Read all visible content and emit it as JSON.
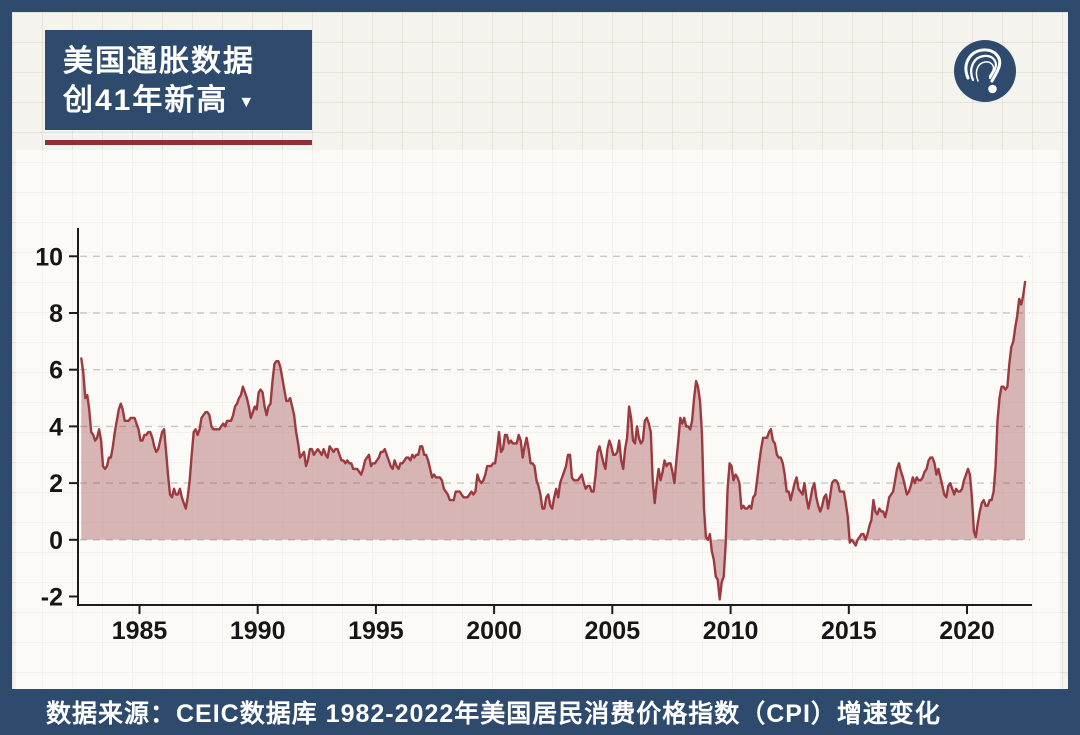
{
  "colors": {
    "navy": "#2e4b6e",
    "accent_red": "#8e2f36",
    "line": "#9c3a40",
    "fill": "#9c3a40",
    "fill_opacity": 0.36,
    "grid": "#c9c7c2",
    "axis": "#1c1c1c",
    "canvas": "#f5f3ed",
    "tick_text": "#161616",
    "white": "#ffffff"
  },
  "header": {
    "title_line1": "美国通胀数据",
    "title_line2": "创41年新高",
    "dropdown_icon": "▼"
  },
  "logo": {
    "description": "question-exclamation-mark-logo"
  },
  "footer": {
    "text": "数据来源：CEIC数据库 1982-2022年美国居民消费价格指数（CPI）增速变化"
  },
  "chart_data": {
    "type": "area",
    "title": "美国通胀数据创41年新高",
    "xlabel": "",
    "ylabel": "",
    "x_unit": "year",
    "y_unit": "%",
    "xticks": [
      1985,
      1990,
      1995,
      2000,
      2005,
      2010,
      2015,
      2020
    ],
    "yticks": [
      -2,
      0,
      2,
      4,
      6,
      8,
      10
    ],
    "xlim": [
      1982.4,
      2022.75
    ],
    "ylim": [
      -2.3,
      11.0
    ],
    "grid": "horizontal-dashed",
    "legend": "none",
    "baseline": 0,
    "series": [
      {
        "name": "美国CPI同比增速(%)",
        "frequency": "monthly",
        "start_year": 1982,
        "start_month": 7,
        "values": [
          6.4,
          5.9,
          5.0,
          5.1,
          4.6,
          3.8,
          3.7,
          3.5,
          3.6,
          3.9,
          3.5,
          2.6,
          2.5,
          2.6,
          2.9,
          2.9,
          3.3,
          3.8,
          4.2,
          4.6,
          4.8,
          4.6,
          4.2,
          4.2,
          4.2,
          4.3,
          4.3,
          4.3,
          4.1,
          3.9,
          3.5,
          3.5,
          3.7,
          3.7,
          3.8,
          3.8,
          3.6,
          3.3,
          3.1,
          3.2,
          3.5,
          3.8,
          3.9,
          3.1,
          2.3,
          1.6,
          1.5,
          1.8,
          1.6,
          1.6,
          1.8,
          1.5,
          1.3,
          1.1,
          1.5,
          2.1,
          3.0,
          3.8,
          3.9,
          3.7,
          3.9,
          4.3,
          4.4,
          4.5,
          4.5,
          4.4,
          4.0,
          3.9,
          3.9,
          3.9,
          3.9,
          4.0,
          4.1,
          4.0,
          4.2,
          4.2,
          4.2,
          4.4,
          4.7,
          4.8,
          5.0,
          5.1,
          5.4,
          5.2,
          5.0,
          4.7,
          4.3,
          4.5,
          4.7,
          4.6,
          5.2,
          5.3,
          5.2,
          4.7,
          4.4,
          4.7,
          4.8,
          5.6,
          6.2,
          6.3,
          6.3,
          6.1,
          5.7,
          5.3,
          4.9,
          4.9,
          5.0,
          4.7,
          4.4,
          3.8,
          3.4,
          2.9,
          3.0,
          3.1,
          2.6,
          2.8,
          3.2,
          3.2,
          3.0,
          3.1,
          3.2,
          3.1,
          3.0,
          3.2,
          3.0,
          2.9,
          3.3,
          3.2,
          3.1,
          3.2,
          3.2,
          3.0,
          2.8,
          2.8,
          2.7,
          2.8,
          2.7,
          2.7,
          2.5,
          2.5,
          2.5,
          2.4,
          2.3,
          2.5,
          2.8,
          2.9,
          3.0,
          2.6,
          2.7,
          2.7,
          2.8,
          2.9,
          3.1,
          3.1,
          3.2,
          3.0,
          2.8,
          2.6,
          2.5,
          2.8,
          2.6,
          2.5,
          2.7,
          2.7,
          2.8,
          2.9,
          2.9,
          2.8,
          3.0,
          2.9,
          3.0,
          3.0,
          3.3,
          3.3,
          3.0,
          3.0,
          2.8,
          2.5,
          2.2,
          2.3,
          2.2,
          2.2,
          2.2,
          2.1,
          1.8,
          1.7,
          1.6,
          1.4,
          1.4,
          1.4,
          1.7,
          1.7,
          1.7,
          1.6,
          1.5,
          1.5,
          1.5,
          1.6,
          1.7,
          1.6,
          1.7,
          2.3,
          2.1,
          2.0,
          2.1,
          2.3,
          2.6,
          2.6,
          2.6,
          2.7,
          2.7,
          3.2,
          3.8,
          3.1,
          3.2,
          3.7,
          3.7,
          3.4,
          3.5,
          3.4,
          3.4,
          3.4,
          3.7,
          3.5,
          2.9,
          3.3,
          3.6,
          3.2,
          2.7,
          2.7,
          2.6,
          2.1,
          1.9,
          1.6,
          1.1,
          1.1,
          1.5,
          1.6,
          1.2,
          1.1,
          1.5,
          1.8,
          1.5,
          2.0,
          2.2,
          2.4,
          2.6,
          3.0,
          3.0,
          2.2,
          2.1,
          2.1,
          2.1,
          2.2,
          2.3,
          2.0,
          1.8,
          1.9,
          1.9,
          1.7,
          1.7,
          2.3,
          3.1,
          3.3,
          3.0,
          2.7,
          2.5,
          3.2,
          3.5,
          3.3,
          3.0,
          3.0,
          3.1,
          3.5,
          2.8,
          2.5,
          3.2,
          3.6,
          4.7,
          4.3,
          3.5,
          3.4,
          4.0,
          3.6,
          3.4,
          3.5,
          4.2,
          4.3,
          4.1,
          3.8,
          2.1,
          1.3,
          2.0,
          2.5,
          2.1,
          2.4,
          2.8,
          2.6,
          2.7,
          2.7,
          2.4,
          2.0,
          2.8,
          3.5,
          4.3,
          4.1,
          4.3,
          4.0,
          4.0,
          3.9,
          4.2,
          5.0,
          5.6,
          5.4,
          4.9,
          3.7,
          1.1,
          0.1,
          0.0,
          0.2,
          -0.4,
          -0.7,
          -1.3,
          -1.4,
          -2.1,
          -1.5,
          -1.3,
          -0.2,
          1.8,
          2.7,
          2.6,
          2.1,
          2.3,
          2.2,
          2.0,
          1.1,
          1.2,
          1.1,
          1.1,
          1.2,
          1.1,
          1.5,
          1.6,
          2.1,
          2.7,
          3.2,
          3.6,
          3.6,
          3.6,
          3.8,
          3.9,
          3.5,
          3.4,
          3.0,
          2.9,
          2.9,
          2.7,
          2.3,
          1.7,
          1.7,
          1.4,
          1.7,
          2.0,
          2.2,
          1.8,
          1.7,
          1.6,
          2.0,
          1.5,
          1.1,
          1.4,
          1.8,
          2.0,
          1.5,
          1.2,
          1.0,
          1.2,
          1.5,
          1.6,
          1.1,
          1.5,
          2.0,
          2.1,
          2.1,
          2.0,
          1.7,
          1.7,
          1.7,
          1.3,
          0.8,
          -0.1,
          0.0,
          -0.1,
          -0.2,
          0.0,
          0.1,
          0.2,
          0.2,
          0.0,
          0.2,
          0.5,
          0.7,
          1.4,
          1.0,
          0.9,
          1.1,
          1.0,
          1.0,
          0.8,
          1.1,
          1.5,
          1.6,
          1.7,
          2.1,
          2.5,
          2.7,
          2.4,
          2.2,
          1.9,
          1.6,
          1.7,
          1.9,
          2.2,
          2.0,
          2.2,
          2.1,
          2.1,
          2.2,
          2.4,
          2.5,
          2.8,
          2.9,
          2.9,
          2.7,
          2.3,
          2.5,
          2.2,
          1.9,
          1.6,
          1.5,
          1.9,
          2.0,
          1.8,
          1.6,
          1.8,
          1.7,
          1.7,
          1.8,
          2.1,
          2.3,
          2.5,
          2.3,
          1.5,
          0.3,
          0.1,
          0.6,
          1.0,
          1.3,
          1.4,
          1.2,
          1.2,
          1.4,
          1.4,
          1.7,
          2.6,
          4.2,
          5.0,
          5.4,
          5.4,
          5.3,
          5.4,
          6.2,
          6.8,
          7.0,
          7.5,
          7.9,
          8.5,
          8.3,
          8.6,
          9.1
        ]
      }
    ]
  }
}
